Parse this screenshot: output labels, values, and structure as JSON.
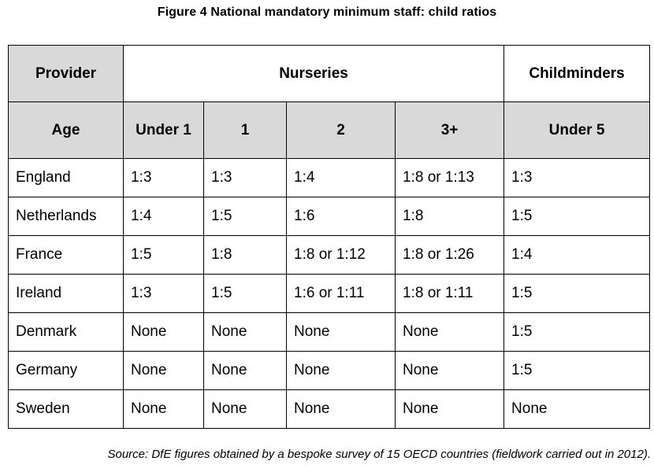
{
  "title": "Figure 4  National mandatory minimum staff: child ratios",
  "header": {
    "provider_label": "Provider",
    "nurseries_label": "Nurseries",
    "childminders_label": "Childminders",
    "age_label": "Age",
    "ages": [
      "Under 1",
      "1",
      "2",
      "3+",
      "Under 5"
    ]
  },
  "rows": [
    {
      "country": "England",
      "values": [
        "1:3",
        "1:3",
        "1:4",
        "1:8 or 1:13",
        "1:3"
      ]
    },
    {
      "country": "Netherlands",
      "values": [
        "1:4",
        "1:5",
        "1:6",
        "1:8",
        "1:5"
      ]
    },
    {
      "country": "France",
      "values": [
        "1:5",
        "1:8",
        "1:8 or 1:12",
        "1:8 or 1:26",
        "1:4"
      ]
    },
    {
      "country": "Ireland",
      "values": [
        "1:3",
        "1:5",
        "1:6 or 1:11",
        "1:8 or 1:11",
        "1:5"
      ]
    },
    {
      "country": "Denmark",
      "values": [
        "None",
        "None",
        "None",
        "None",
        "1:5"
      ]
    },
    {
      "country": "Germany",
      "values": [
        "None",
        "None",
        "None",
        "None",
        "1:5"
      ]
    },
    {
      "country": "Sweden",
      "values": [
        "None",
        "None",
        "None",
        "None",
        "None"
      ]
    }
  ],
  "source": "Source: DfE figures obtained by a bespoke survey of 15 OECD countries (fieldwork carried out in 2012).",
  "colors": {
    "header_fill": "#d9d9d9",
    "border": "#000000"
  }
}
